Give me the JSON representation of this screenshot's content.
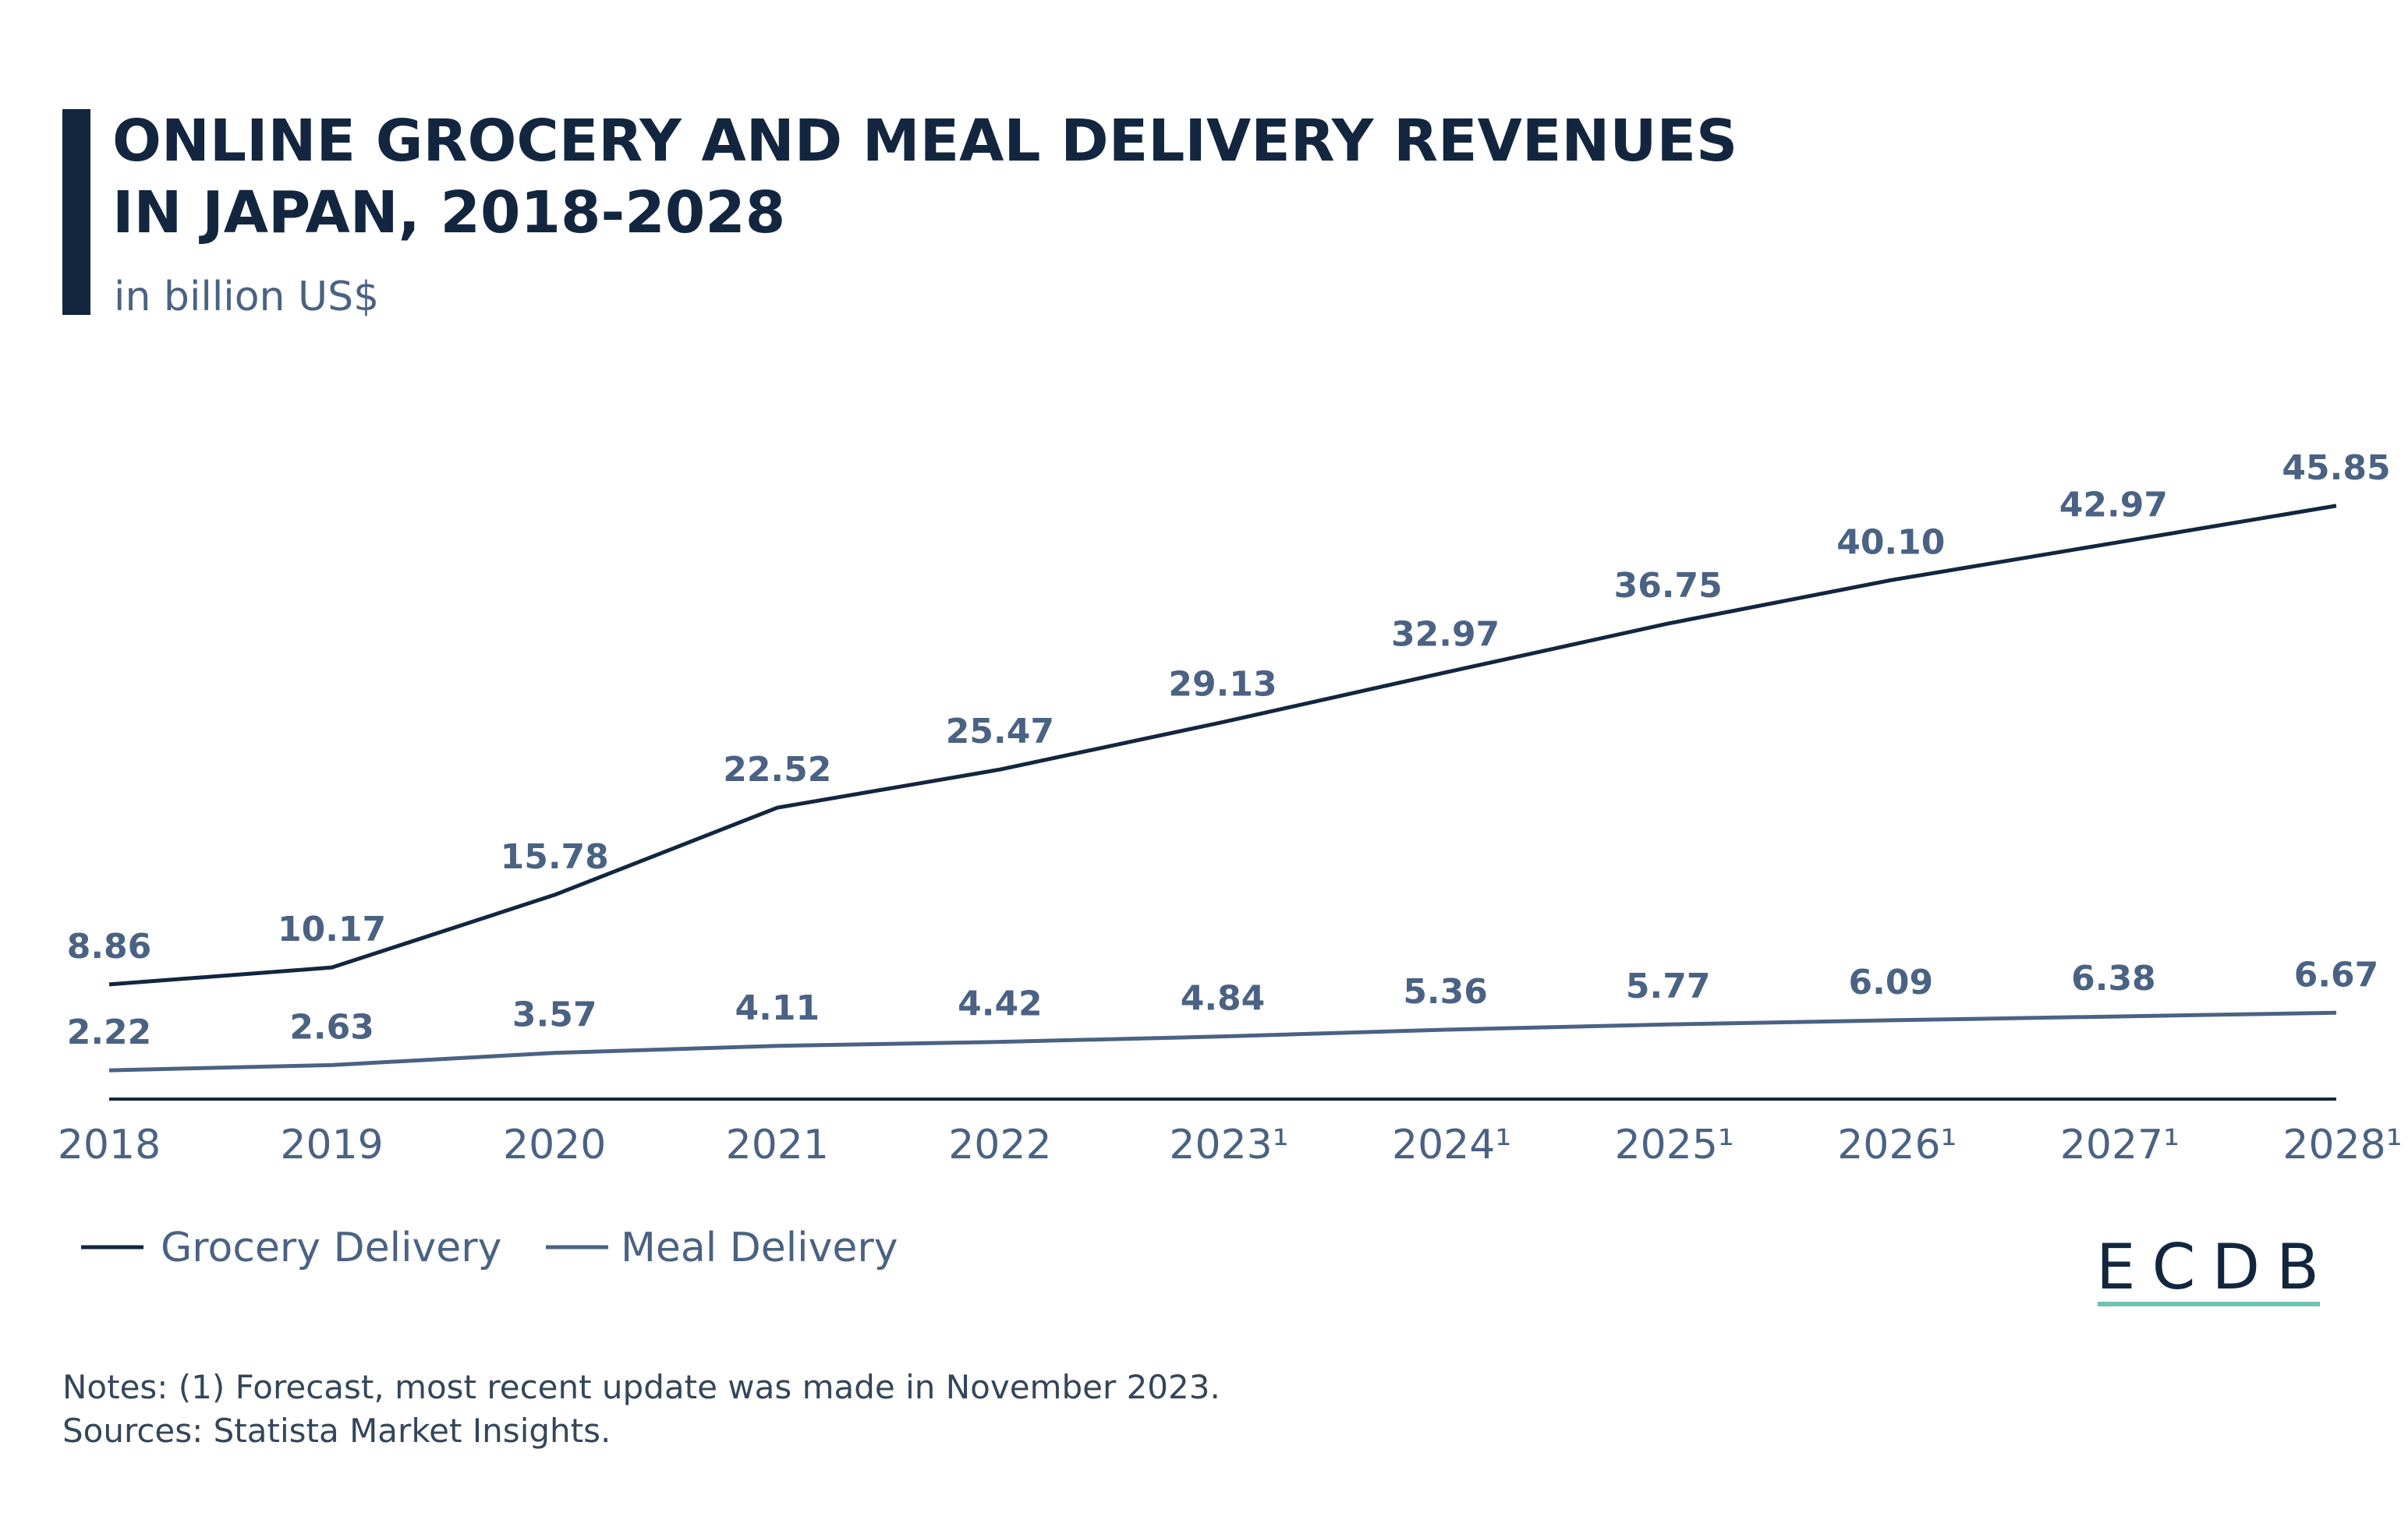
{
  "title_lines": [
    "ONLINE GROCERY AND MEAL DELIVERY REVENUES",
    "IN JAPAN, 2018-2028"
  ],
  "subtitle": "in billion US$",
  "notes": [
    "Notes: (1) Forecast, most recent update was made in November 2023.",
    "Sources: Statista Market Insights."
  ],
  "logo": "ECDB",
  "colors": {
    "grocery": "#13263f",
    "meal": "#4a6283",
    "accent_bar": "#13263f",
    "logo_underline": "#6fc3b0"
  },
  "chart_data": {
    "type": "line",
    "title": "ONLINE GROCERY AND MEAL DELIVERY REVENUES IN JAPAN, 2018-2028",
    "subtitle": "in billion US$",
    "categories": [
      "2018",
      "2019",
      "2020",
      "2021",
      "2022",
      "2023¹",
      "2024¹",
      "2025¹",
      "2026¹",
      "2027¹",
      "2028¹"
    ],
    "series": [
      {
        "name": "Grocery Delivery",
        "values": [
          8.86,
          10.17,
          15.78,
          22.52,
          25.47,
          29.13,
          32.97,
          36.75,
          40.1,
          42.97,
          45.85
        ],
        "labels": [
          "8.86",
          "10.17",
          "15.78",
          "22.52",
          "25.47",
          "29.13",
          "32.97",
          "36.75",
          "40.10",
          "42.97",
          "45.85"
        ]
      },
      {
        "name": "Meal Delivery",
        "values": [
          2.22,
          2.63,
          3.57,
          4.11,
          4.42,
          4.84,
          5.36,
          5.77,
          6.09,
          6.38,
          6.67
        ],
        "labels": [
          "2.22",
          "2.63",
          "3.57",
          "4.11",
          "4.42",
          "4.84",
          "5.36",
          "5.77",
          "6.09",
          "6.38",
          "6.67"
        ]
      }
    ],
    "ylim": [
      0,
      46
    ],
    "grid": false,
    "legend": "bottom-left"
  }
}
